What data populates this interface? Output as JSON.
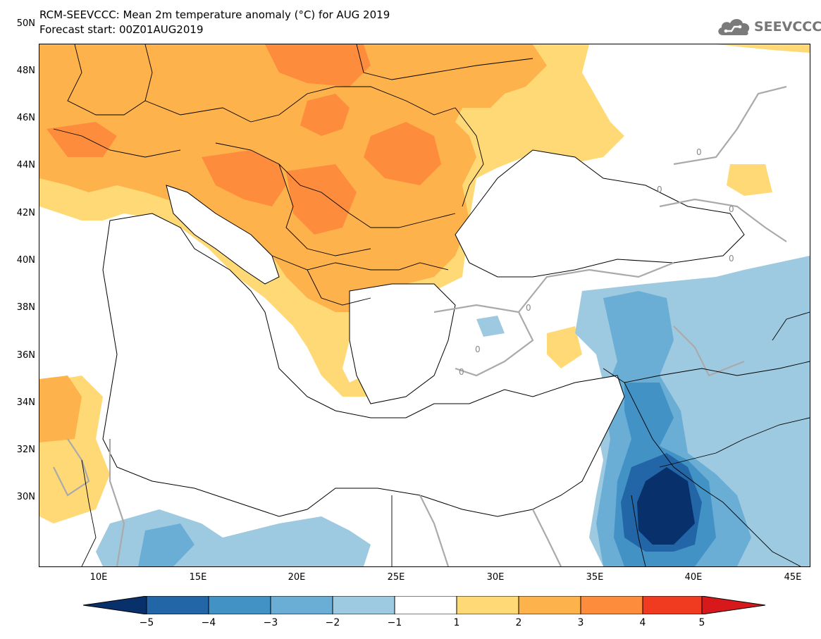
{
  "header": {
    "title": "RCM-SEEVCCC: Mean 2m temperature anomaly (°C) for AUG 2019",
    "subtitle": "Forecast start: 00Z01AUG2019"
  },
  "logo": {
    "text": "SEEVCCC",
    "icon": "cloud-icon"
  },
  "map": {
    "lat_ticks": [
      "50N",
      "48N",
      "46N",
      "44N",
      "42N",
      "40N",
      "38N",
      "36N",
      "34N",
      "32N",
      "30N"
    ],
    "lon_ticks": [
      "10E",
      "15E",
      "20E",
      "25E",
      "30E",
      "35E",
      "40E",
      "45E"
    ],
    "contour_label": "0"
  },
  "colorbar": {
    "labels": [
      "−5",
      "−4",
      "−3",
      "−2",
      "−1",
      "1",
      "2",
      "3",
      "4",
      "5"
    ],
    "colors": [
      "#08306b",
      "#2366a8",
      "#4292c6",
      "#6aaed6",
      "#9ecae1",
      "#ffffff",
      "#fed976",
      "#feb24c",
      "#fd8d3c",
      "#f03b20",
      "#d7191c"
    ]
  }
}
